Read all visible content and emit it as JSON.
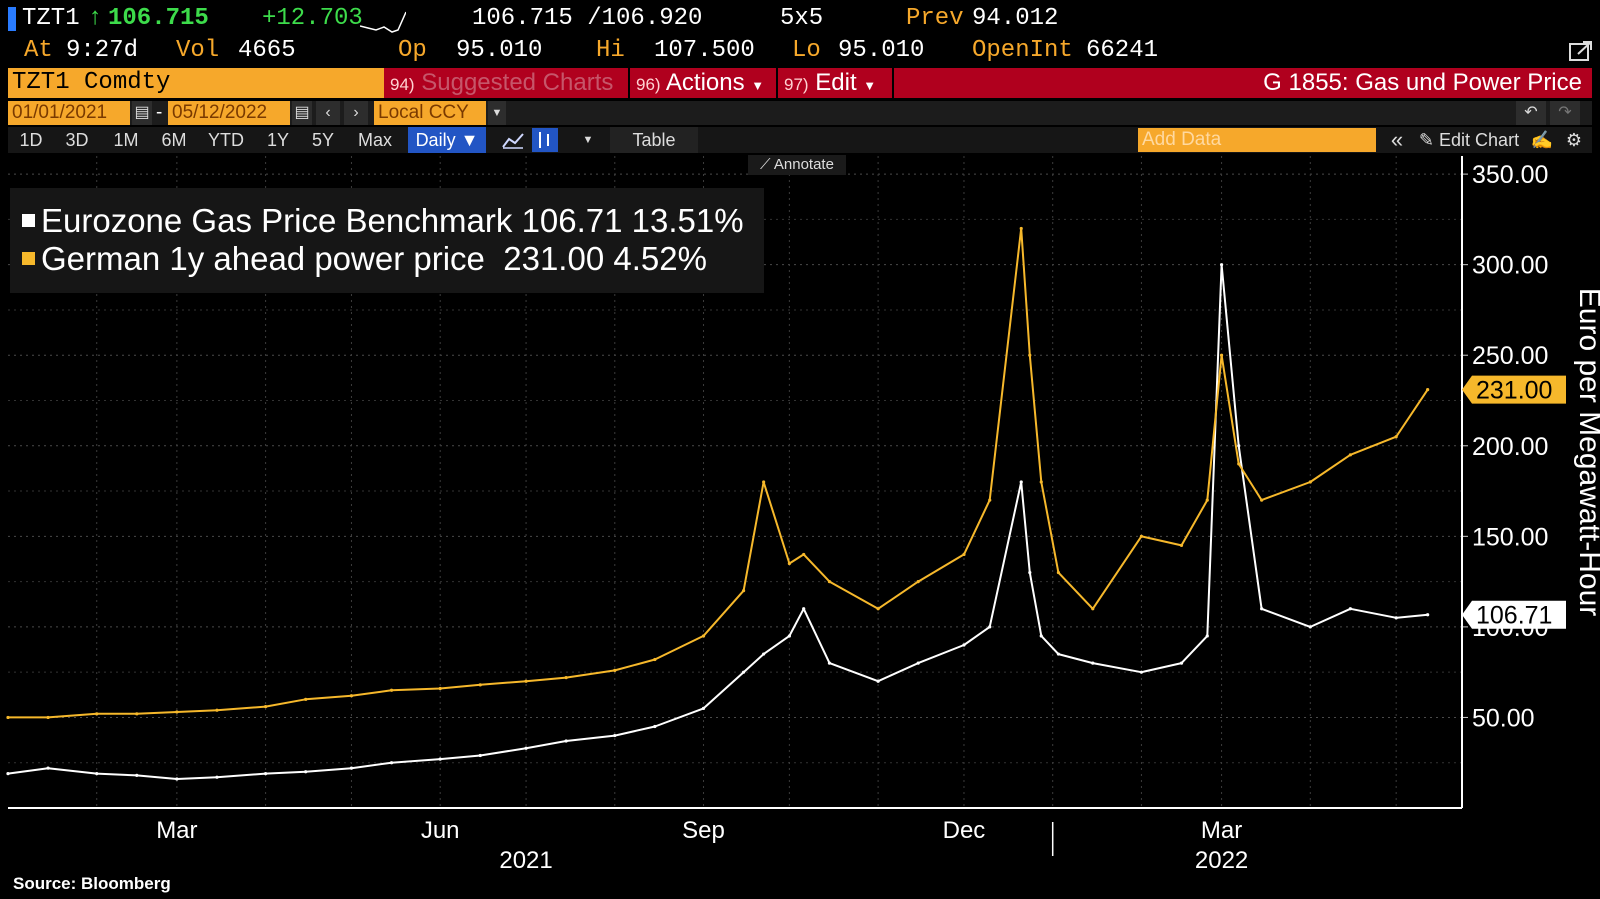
{
  "quote": {
    "ticker": "TZT1",
    "arrow": "↑",
    "last": "106.715",
    "change": "+12.703",
    "bid_ask": "106.715 /106.920",
    "size": "5x5",
    "prev_label": "Prev",
    "prev": "94.012",
    "at_label": "At",
    "at_time": "9:27d",
    "vol_label": "Vol",
    "vol": "4665",
    "open_label": "Op",
    "open": "95.010",
    "high_label": "Hi",
    "high": "107.500",
    "low_label": "Lo",
    "low": "95.010",
    "openint_label": "OpenInt",
    "openint": "66241"
  },
  "tabs": {
    "security": "TZT1 Comdty",
    "suggested_num": "94)",
    "suggested": "Suggested Charts",
    "actions_num": "96)",
    "actions": "Actions",
    "edit_num": "97)",
    "edit": "Edit",
    "page_title": "G 1855: Gas und Power Price"
  },
  "dates": {
    "start": "01/01/2021",
    "sep": "-",
    "end": "05/12/2022",
    "currency": "Local CCY"
  },
  "periods": [
    "1D",
    "3D",
    "1M",
    "6M",
    "YTD",
    "1Y",
    "5Y",
    "Max"
  ],
  "toolbar": {
    "frequency": "Daily",
    "table": "Table",
    "add_data_placeholder": "Add Data",
    "edit_chart": "Edit Chart",
    "annotate": "Annotate"
  },
  "legend": [
    {
      "name": "Eurozone Gas Price Benchmark",
      "value": "106.71",
      "change": "13.51%",
      "color": "#ffffff"
    },
    {
      "name": "German 1y ahead power price",
      "value": "231.00",
      "change": "4.52%",
      "color": "#f6b82b"
    }
  ],
  "source": "Source: Bloomberg",
  "chart_data": {
    "type": "line",
    "ylabel": "Euro per Megawatt-Hour",
    "ylim": [
      0,
      360
    ],
    "yticks": [
      "50.00",
      "100.00",
      "150.00",
      "200.00",
      "250.00",
      "300.00",
      "350.00"
    ],
    "xticks": [
      "Mar",
      "Jun",
      "Sep",
      "Dec",
      "Mar"
    ],
    "xyears": [
      "2021",
      "2022"
    ],
    "x": [
      "2021-01-01",
      "2021-01-15",
      "2021-02-01",
      "2021-02-15",
      "2021-03-01",
      "2021-03-15",
      "2021-04-01",
      "2021-04-15",
      "2021-05-01",
      "2021-05-15",
      "2021-06-01",
      "2021-06-15",
      "2021-07-01",
      "2021-07-15",
      "2021-08-01",
      "2021-08-15",
      "2021-09-01",
      "2021-09-15",
      "2021-09-22",
      "2021-10-01",
      "2021-10-06",
      "2021-10-15",
      "2021-11-01",
      "2021-11-15",
      "2021-12-01",
      "2021-12-10",
      "2021-12-21",
      "2021-12-24",
      "2021-12-28",
      "2022-01-03",
      "2022-01-15",
      "2022-02-01",
      "2022-02-15",
      "2022-02-24",
      "2022-03-01",
      "2022-03-07",
      "2022-03-15",
      "2022-04-01",
      "2022-04-15",
      "2022-05-01",
      "2022-05-12"
    ],
    "series": [
      {
        "name": "Eurozone Gas Price Benchmark",
        "color": "#ffffff",
        "values": [
          19,
          22,
          19,
          18,
          16,
          17,
          19,
          20,
          22,
          25,
          27,
          29,
          33,
          37,
          40,
          45,
          55,
          75,
          85,
          95,
          110,
          80,
          70,
          80,
          90,
          100,
          180,
          130,
          95,
          85,
          80,
          75,
          80,
          95,
          300,
          200,
          110,
          100,
          110,
          105,
          106.71
        ]
      },
      {
        "name": "German 1y ahead power price",
        "color": "#f6b82b",
        "values": [
          50,
          50,
          52,
          52,
          53,
          54,
          56,
          60,
          62,
          65,
          66,
          68,
          70,
          72,
          76,
          82,
          95,
          120,
          180,
          135,
          140,
          125,
          110,
          125,
          140,
          170,
          320,
          250,
          180,
          130,
          110,
          150,
          145,
          170,
          250,
          190,
          170,
          180,
          195,
          205,
          231.0
        ]
      }
    ],
    "last_value_labels": [
      "231.00",
      "106.71"
    ]
  }
}
